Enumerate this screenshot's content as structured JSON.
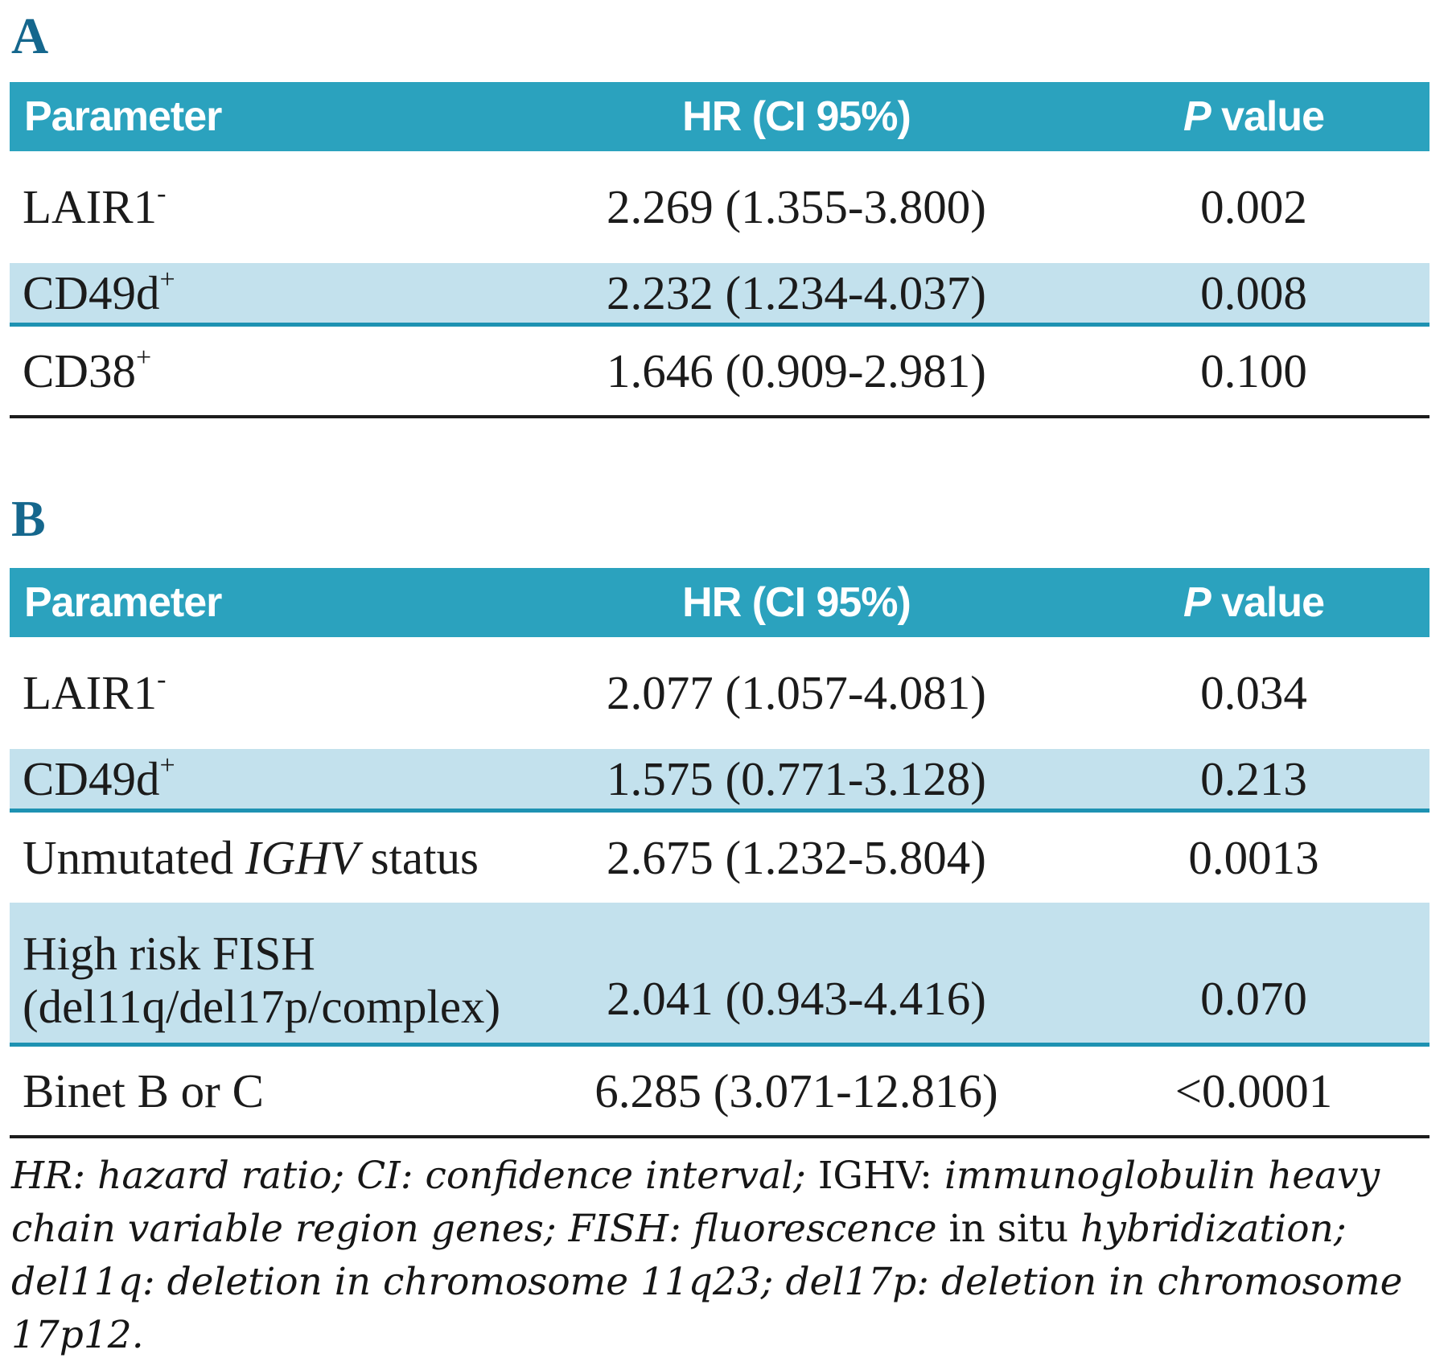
{
  "palette": {
    "header_bg": "#2ba2be",
    "shaded_row_bg": "#c3e1ed",
    "teal_divider": "#1e92b2",
    "section_label_color": "#15678d",
    "header_text_color": "#ffffff",
    "body_text_color": "#1b1b1b",
    "bottom_rule_color": "#1c1c1c"
  },
  "section_a": {
    "label": "A",
    "header": {
      "parameter": "Parameter",
      "hr": "HR (CI 95%)",
      "p_italic": "P",
      "p_rest": " value"
    },
    "rows": [
      {
        "name": "LAIR1",
        "sup": "-",
        "hr": "2.269 (1.355-3.800)",
        "p": "0.002"
      },
      {
        "name": "CD49d",
        "sup": "+",
        "hr": "2.232 (1.234-4.037)",
        "p": "0.008"
      },
      {
        "name": "CD38",
        "sup": "+",
        "hr": "1.646 (0.909-2.981)",
        "p": "0.100"
      }
    ]
  },
  "section_b": {
    "label": "B",
    "header": {
      "parameter": "Parameter",
      "hr": "HR (CI 95%)",
      "p_italic": "P",
      "p_rest": " value"
    },
    "rows": [
      {
        "name": "LAIR1",
        "sup": "-",
        "hr": "2.077 (1.057-4.081)",
        "p": "0.034"
      },
      {
        "name": "CD49d",
        "sup": "+",
        "hr": "1.575 (0.771-3.128)",
        "p": "0.213"
      },
      {
        "pre": "Unmutated ",
        "gene": "IGHV",
        "post": " status",
        "hr": "2.675 (1.232-5.804)",
        "p": "0.0013"
      },
      {
        "line1": "High risk FISH",
        "line2": "(del11q/del17p/complex)",
        "hr": "2.041 (0.943-4.416)",
        "p": "0.070"
      },
      {
        "name": "Binet B or C",
        "hr": "6.285 (3.071-12.816)",
        "p": "<0.0001"
      }
    ]
  },
  "footnote": {
    "segments": [
      {
        "style": "italic",
        "text": "HR: hazard ratio; CI: confidence interval; "
      },
      {
        "style": "roman",
        "text": "IGHV: "
      },
      {
        "style": "italic",
        "text": "immunoglobulin heavy chain variable region genes; FISH: fluorescence "
      },
      {
        "style": "roman",
        "text": "in situ "
      },
      {
        "style": "italic",
        "text": "hybridization; del11q: deletion in chromosome 11q23; del17p: deletion in chromosome 17p12."
      }
    ]
  }
}
